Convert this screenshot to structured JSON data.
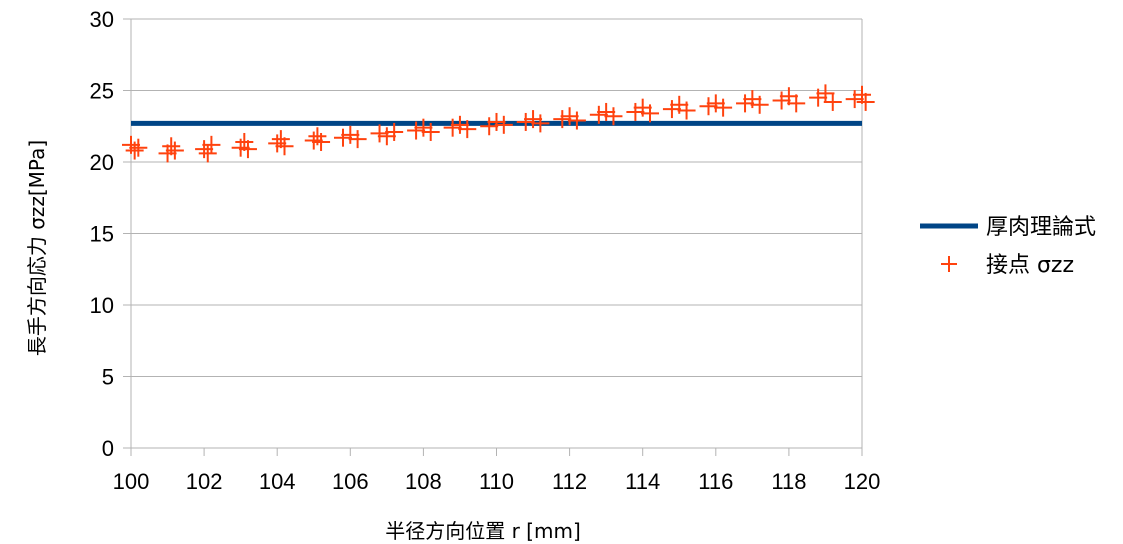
{
  "chart_data": {
    "type": "scatter",
    "title": "",
    "xlabel": "半径方向位置 r [mm]",
    "ylabel": "長手方向応力 σzz[MPa]",
    "xlim": [
      100,
      120
    ],
    "ylim": [
      0,
      30
    ],
    "x_ticks": [
      100,
      102,
      104,
      106,
      108,
      110,
      112,
      114,
      116,
      118,
      120
    ],
    "y_ticks": [
      0,
      5,
      10,
      15,
      20,
      25,
      30
    ],
    "grid": "horizontal",
    "legend_position": "right",
    "series": [
      {
        "name": "厚肉理論式",
        "type": "line",
        "color": "#004586",
        "x": [
          100,
          120
        ],
        "y": [
          22.7,
          22.7
        ]
      },
      {
        "name": "接点 σzz",
        "type": "scatter",
        "marker": "plus",
        "color": "#ff420e",
        "x": [
          100,
          100.1,
          100.2,
          101,
          101.1,
          101.2,
          102,
          102.1,
          102.2,
          103,
          103.1,
          103.2,
          104,
          104.1,
          104.2,
          105,
          105.1,
          105.2,
          105.8,
          106,
          106.2,
          106.8,
          107,
          107.2,
          107.8,
          108,
          108.2,
          108.8,
          109,
          109.2,
          109.8,
          110,
          110.2,
          110.8,
          111,
          111.2,
          111.8,
          112,
          112.2,
          112.8,
          113,
          113.2,
          113.8,
          114,
          114.2,
          114.8,
          115,
          115.2,
          115.8,
          116,
          116.2,
          116.8,
          117,
          117.2,
          117.8,
          118,
          118.2,
          118.8,
          119,
          119.2,
          119.8,
          120,
          120.1
        ],
        "y": [
          21.2,
          20.8,
          21.0,
          20.6,
          21.1,
          20.8,
          20.9,
          20.6,
          21.2,
          21.0,
          21.4,
          20.9,
          21.3,
          21.6,
          21.1,
          21.5,
          21.8,
          21.4,
          21.7,
          21.9,
          21.6,
          22.0,
          21.8,
          22.1,
          22.2,
          22.4,
          22.1,
          22.4,
          22.6,
          22.3,
          22.5,
          22.8,
          22.6,
          22.8,
          23.0,
          22.7,
          23.0,
          23.2,
          22.9,
          23.3,
          23.5,
          23.2,
          23.5,
          23.8,
          23.4,
          23.7,
          24.0,
          23.6,
          23.9,
          24.1,
          23.8,
          24.1,
          24.4,
          24.0,
          24.3,
          24.6,
          24.1,
          24.5,
          24.8,
          24.2,
          24.4,
          24.7,
          24.2
        ]
      }
    ]
  }
}
